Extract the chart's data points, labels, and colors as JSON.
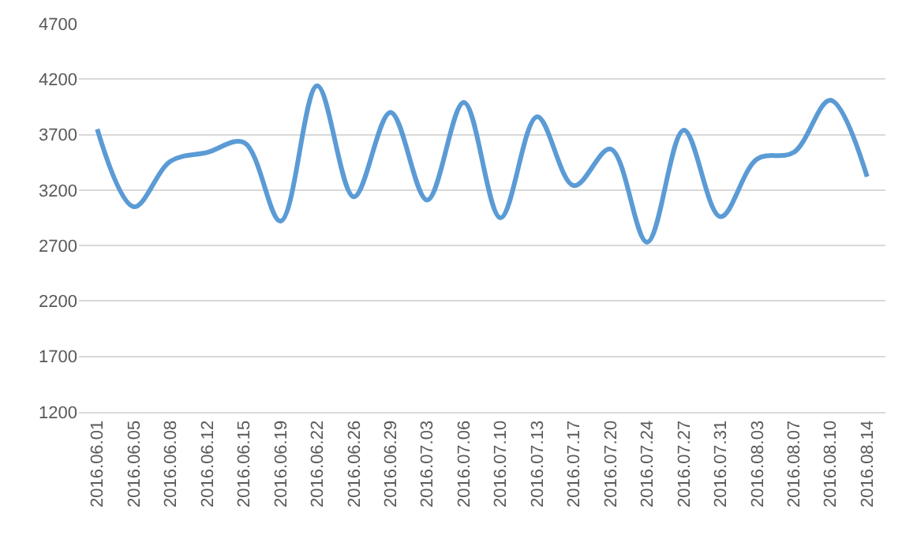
{
  "chart_data": {
    "type": "line",
    "categories": [
      "2016.06.01",
      "2016.06.05",
      "2016.06.08",
      "2016.06.12",
      "2016.06.15",
      "2016.06.19",
      "2016.06.22",
      "2016.06.26",
      "2016.06.29",
      "2016.07.03",
      "2016.07.06",
      "2016.07.10",
      "2016.07.13",
      "2016.07.17",
      "2016.07.20",
      "2016.07.24",
      "2016.07.27",
      "2016.07.31",
      "2016.08.03",
      "2016.08.07",
      "2016.08.10",
      "2016.08.14"
    ],
    "series": [
      {
        "color": "#5b9bd5",
        "values": [
          3750,
          3050,
          3460,
          3540,
          3630,
          2920,
          4140,
          3140,
          3900,
          3110,
          3990,
          2950,
          3860,
          3240,
          3570,
          2730,
          3740,
          2960,
          3480,
          3540,
          4010,
          3320
        ]
      }
    ],
    "ylim": [
      1200,
      4700
    ],
    "yticks": [
      1200,
      1700,
      2200,
      2700,
      3200,
      3700,
      4200,
      4700
    ],
    "grid": "y",
    "marker": "none",
    "line_style": "solid"
  }
}
